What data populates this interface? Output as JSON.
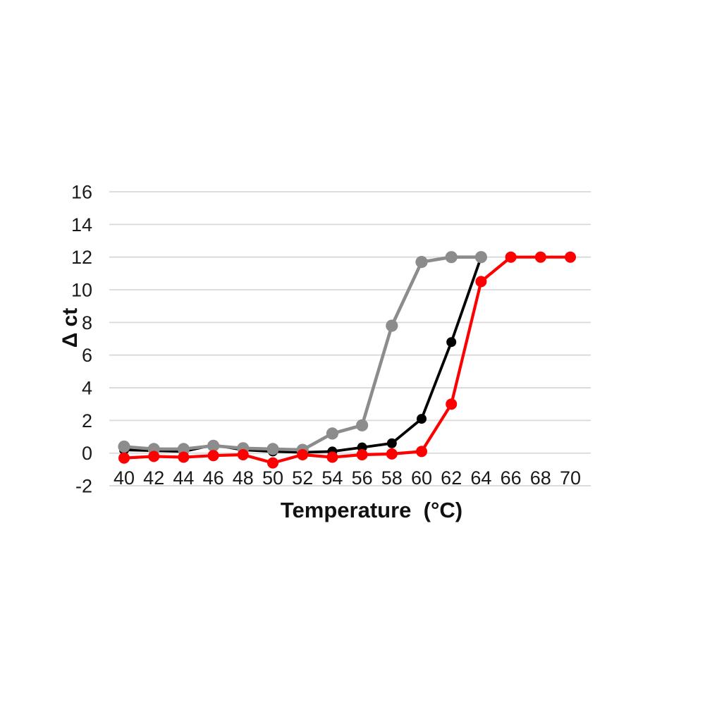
{
  "chart_data": {
    "type": "line",
    "title": "",
    "xlabel": "Temperature  (°C)",
    "ylabel": "Δ ct",
    "x": [
      40,
      42,
      44,
      46,
      48,
      50,
      52,
      54,
      56,
      58,
      60,
      62,
      64,
      66,
      68,
      70
    ],
    "x_tick_labels": [
      "40",
      "42",
      "44",
      "46",
      "48",
      "50",
      "52",
      "54",
      "56",
      "58",
      "60",
      "62",
      "64",
      "66",
      "68",
      "70"
    ],
    "ylim": [
      -2,
      16
    ],
    "ytick_step": 2,
    "y_tick_labels": [
      "-2",
      "0",
      "2",
      "4",
      "6",
      "8",
      "10",
      "12",
      "14",
      "16"
    ],
    "grid": true,
    "legend": "none",
    "series": [
      {
        "name": "black",
        "color": "#000000",
        "marker": "circle",
        "values": [
          0.2,
          0.15,
          0.1,
          0.5,
          0.2,
          0.1,
          0.05,
          0.1,
          0.35,
          0.6,
          2.1,
          6.8,
          12,
          null,
          null,
          null
        ]
      },
      {
        "name": "gray",
        "color": "#8C8C8C",
        "marker": "circle",
        "values": [
          0.4,
          0.25,
          0.25,
          0.45,
          0.3,
          0.25,
          0.2,
          1.2,
          1.7,
          7.8,
          11.7,
          12,
          12,
          null,
          null,
          null
        ]
      },
      {
        "name": "red",
        "color": "#FF0000",
        "marker": "circle",
        "values": [
          -0.3,
          -0.2,
          -0.25,
          -0.15,
          -0.1,
          -0.6,
          -0.1,
          -0.25,
          -0.1,
          -0.05,
          0.1,
          3.0,
          10.5,
          12,
          12,
          12
        ]
      }
    ]
  },
  "colors": {
    "background": "#FFFFFF",
    "gridline": "#D9D9D9",
    "tick_label": "#1A1A1A",
    "series_black": "#000000",
    "series_gray": "#8C8C8C",
    "series_red": "#FF0000"
  }
}
